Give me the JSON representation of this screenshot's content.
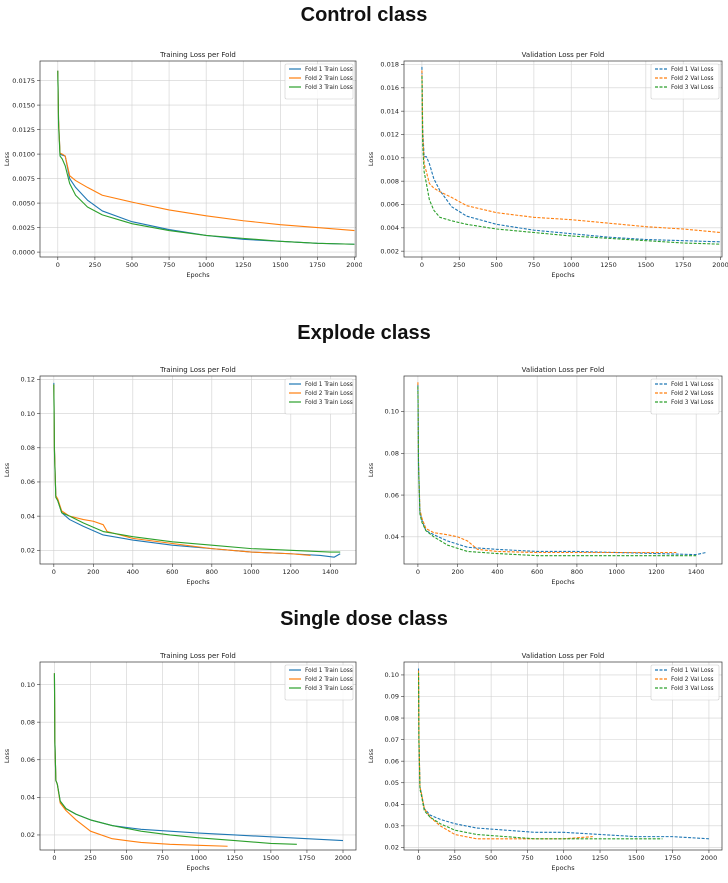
{
  "sections": [
    {
      "title": "Control class"
    },
    {
      "title": "Explode class"
    },
    {
      "title": "Single dose class"
    }
  ],
  "colors": {
    "fold1": "#1f77b4",
    "fold2": "#ff7f0e",
    "fold3": "#2ca02c",
    "grid": "#d0d0d0",
    "axis": "#333333"
  },
  "chart_data": [
    {
      "type": "line",
      "section": "Control class",
      "panel": "train",
      "title": "Training Loss per Fold",
      "xlabel": "Epochs",
      "ylabel": "Loss",
      "xlim": [
        -120,
        2010
      ],
      "ylim": [
        -0.0005,
        0.0195
      ],
      "xticks": [
        0,
        250,
        500,
        750,
        1000,
        1250,
        1500,
        1750,
        2000
      ],
      "yticks": [
        0.0,
        0.0025,
        0.005,
        0.0075,
        0.01,
        0.0125,
        0.015,
        0.0175
      ],
      "ytick_labels": [
        "0.0000",
        "0.0025",
        "0.0050",
        "0.0075",
        "0.0100",
        "0.0125",
        "0.0150",
        "0.0175"
      ],
      "legend": "top-right",
      "grid": true,
      "series": [
        {
          "name": "Fold 1 Train Loss",
          "dash": false,
          "x": [
            0,
            5,
            15,
            30,
            50,
            80,
            120,
            200,
            300,
            500,
            750,
            1000,
            1250,
            1500,
            1750,
            2000
          ],
          "y": [
            0.0185,
            0.0135,
            0.01,
            0.0099,
            0.0098,
            0.0075,
            0.0066,
            0.0053,
            0.0042,
            0.0031,
            0.0023,
            0.0017,
            0.0013,
            0.0011,
            0.0009,
            0.0008
          ]
        },
        {
          "name": "Fold 2 Train Loss",
          "dash": false,
          "x": [
            0,
            5,
            15,
            30,
            50,
            80,
            120,
            200,
            300,
            500,
            750,
            1000,
            1250,
            1500,
            1750,
            2000
          ],
          "y": [
            0.0185,
            0.0135,
            0.0101,
            0.01,
            0.0098,
            0.0078,
            0.0073,
            0.0066,
            0.0058,
            0.0051,
            0.0043,
            0.0037,
            0.0032,
            0.0028,
            0.0025,
            0.0022
          ]
        },
        {
          "name": "Fold 3 Train Loss",
          "dash": false,
          "x": [
            0,
            5,
            15,
            30,
            50,
            80,
            120,
            200,
            300,
            500,
            750,
            1000,
            1250,
            1500,
            1750,
            2000
          ],
          "y": [
            0.0185,
            0.013,
            0.0098,
            0.0095,
            0.0088,
            0.007,
            0.0058,
            0.0046,
            0.0038,
            0.0029,
            0.0022,
            0.0017,
            0.0014,
            0.0011,
            0.0009,
            0.0008
          ]
        }
      ]
    },
    {
      "type": "line",
      "section": "Control class",
      "panel": "val",
      "title": "Validation Loss per Fold",
      "xlabel": "Epochs",
      "ylabel": "Loss",
      "xlim": [
        -120,
        2010
      ],
      "ylim": [
        0.0015,
        0.0183
      ],
      "xticks": [
        0,
        250,
        500,
        750,
        1000,
        1250,
        1500,
        1750,
        2000
      ],
      "yticks": [
        0.002,
        0.004,
        0.006,
        0.008,
        0.01,
        0.012,
        0.014,
        0.016,
        0.018
      ],
      "ytick_labels": [
        "0.002",
        "0.004",
        "0.006",
        "0.008",
        "0.010",
        "0.012",
        "0.014",
        "0.016",
        "0.018"
      ],
      "legend": "top-right",
      "grid": true,
      "series": [
        {
          "name": "Fold 1 Val Loss",
          "dash": true,
          "x": [
            0,
            5,
            15,
            30,
            50,
            80,
            120,
            200,
            300,
            500,
            750,
            1000,
            1250,
            1500,
            1750,
            2000
          ],
          "y": [
            0.0178,
            0.0125,
            0.0101,
            0.0101,
            0.0095,
            0.0082,
            0.0072,
            0.0058,
            0.005,
            0.0043,
            0.0038,
            0.0035,
            0.0032,
            0.003,
            0.0029,
            0.0028
          ]
        },
        {
          "name": "Fold 2 Val Loss",
          "dash": true,
          "x": [
            0,
            5,
            15,
            30,
            50,
            80,
            120,
            200,
            300,
            500,
            750,
            1000,
            1250,
            1500,
            1750,
            2000
          ],
          "y": [
            0.0175,
            0.0122,
            0.0095,
            0.0088,
            0.0078,
            0.0074,
            0.0071,
            0.0066,
            0.0059,
            0.0053,
            0.0049,
            0.0047,
            0.0044,
            0.0041,
            0.0039,
            0.0036
          ]
        },
        {
          "name": "Fold 3 Val Loss",
          "dash": true,
          "x": [
            0,
            5,
            15,
            30,
            50,
            80,
            120,
            200,
            300,
            500,
            750,
            1000,
            1250,
            1500,
            1750,
            2000
          ],
          "y": [
            0.017,
            0.0112,
            0.0088,
            0.0078,
            0.0064,
            0.0055,
            0.0049,
            0.0046,
            0.0043,
            0.0039,
            0.0036,
            0.0033,
            0.0031,
            0.0029,
            0.0027,
            0.0026
          ]
        }
      ]
    },
    {
      "type": "line",
      "section": "Explode class",
      "panel": "train",
      "title": "Training Loss per Fold",
      "xlabel": "Epochs",
      "ylabel": "Loss",
      "xlim": [
        -70,
        1530
      ],
      "ylim": [
        0.012,
        0.122
      ],
      "xticks": [
        0,
        200,
        400,
        600,
        800,
        1000,
        1200,
        1400
      ],
      "yticks": [
        0.02,
        0.04,
        0.06,
        0.08,
        0.1,
        0.12
      ],
      "ytick_labels": [
        "0.02",
        "0.04",
        "0.06",
        "0.08",
        "0.10",
        "0.12"
      ],
      "legend": "top-right",
      "grid": true,
      "series": [
        {
          "name": "Fold 1 Train Loss",
          "dash": false,
          "x": [
            0,
            3,
            10,
            20,
            40,
            80,
            150,
            250,
            400,
            600,
            800,
            1000,
            1200,
            1350,
            1420,
            1450
          ],
          "y": [
            0.118,
            0.08,
            0.052,
            0.049,
            0.042,
            0.038,
            0.034,
            0.029,
            0.026,
            0.023,
            0.021,
            0.019,
            0.018,
            0.017,
            0.016,
            0.018
          ]
        },
        {
          "name": "Fold 2 Train Loss",
          "dash": false,
          "x": [
            0,
            3,
            10,
            20,
            40,
            80,
            150,
            200,
            250,
            270,
            400,
            600,
            800,
            1000,
            1200,
            1300
          ],
          "y": [
            0.117,
            0.08,
            0.052,
            0.05,
            0.043,
            0.04,
            0.038,
            0.037,
            0.035,
            0.031,
            0.027,
            0.024,
            0.021,
            0.019,
            0.018,
            0.017
          ]
        },
        {
          "name": "Fold 3 Train Loss",
          "dash": false,
          "x": [
            0,
            3,
            10,
            20,
            40,
            80,
            150,
            250,
            400,
            600,
            800,
            1000,
            1200,
            1300,
            1400,
            1450
          ],
          "y": [
            0.117,
            0.078,
            0.051,
            0.049,
            0.042,
            0.04,
            0.036,
            0.031,
            0.028,
            0.025,
            0.023,
            0.021,
            0.02,
            0.0195,
            0.019,
            0.019
          ]
        }
      ]
    },
    {
      "type": "line",
      "section": "Explode class",
      "panel": "val",
      "title": "Validation Loss per Fold",
      "xlabel": "Epochs",
      "ylabel": "Loss",
      "xlim": [
        -70,
        1530
      ],
      "ylim": [
        0.027,
        0.117
      ],
      "xticks": [
        0,
        200,
        400,
        600,
        800,
        1000,
        1200,
        1400
      ],
      "yticks": [
        0.04,
        0.06,
        0.08,
        0.1
      ],
      "ytick_labels": [
        "0.04",
        "0.06",
        "0.08",
        "0.10"
      ],
      "legend": "top-right",
      "grid": true,
      "series": [
        {
          "name": "Fold 1 Val Loss",
          "dash": true,
          "x": [
            0,
            3,
            10,
            20,
            40,
            80,
            150,
            250,
            400,
            600,
            800,
            1000,
            1200,
            1400,
            1450
          ],
          "y": [
            0.113,
            0.075,
            0.052,
            0.048,
            0.043,
            0.041,
            0.038,
            0.035,
            0.034,
            0.033,
            0.033,
            0.0325,
            0.032,
            0.0315,
            0.0325
          ]
        },
        {
          "name": "Fold 2 Val Loss",
          "dash": true,
          "x": [
            0,
            3,
            10,
            20,
            40,
            80,
            150,
            200,
            250,
            300,
            400,
            600,
            800,
            1000,
            1200,
            1300
          ],
          "y": [
            0.114,
            0.076,
            0.053,
            0.049,
            0.044,
            0.042,
            0.041,
            0.04,
            0.038,
            0.034,
            0.033,
            0.0325,
            0.0325,
            0.0325,
            0.0325,
            0.0325
          ]
        },
        {
          "name": "Fold 3 Val Loss",
          "dash": true,
          "x": [
            0,
            3,
            10,
            20,
            40,
            80,
            150,
            250,
            400,
            600,
            800,
            1000,
            1200,
            1400
          ],
          "y": [
            0.112,
            0.074,
            0.051,
            0.047,
            0.043,
            0.04,
            0.036,
            0.033,
            0.032,
            0.031,
            0.031,
            0.031,
            0.031,
            0.031
          ]
        }
      ]
    },
    {
      "type": "line",
      "section": "Single dose class",
      "panel": "train",
      "title": "Training Loss per Fold",
      "xlabel": "Epochs",
      "ylabel": "Loss",
      "xlim": [
        -100,
        2090
      ],
      "ylim": [
        0.012,
        0.112
      ],
      "xticks": [
        0,
        250,
        500,
        750,
        1000,
        1250,
        1500,
        1750,
        2000
      ],
      "yticks": [
        0.02,
        0.04,
        0.06,
        0.08,
        0.1
      ],
      "ytick_labels": [
        "0.02",
        "0.04",
        "0.06",
        "0.08",
        "0.10"
      ],
      "legend": "top-right",
      "grid": true,
      "series": [
        {
          "name": "Fold 1 Train Loss",
          "dash": false,
          "x": [
            0,
            3,
            10,
            20,
            40,
            80,
            150,
            250,
            400,
            600,
            800,
            1000,
            1250,
            1500,
            1750,
            2000
          ],
          "y": [
            0.106,
            0.07,
            0.049,
            0.047,
            0.038,
            0.034,
            0.031,
            0.028,
            0.025,
            0.023,
            0.022,
            0.021,
            0.02,
            0.019,
            0.018,
            0.017
          ]
        },
        {
          "name": "Fold 2 Train Loss",
          "dash": false,
          "x": [
            0,
            3,
            10,
            20,
            40,
            80,
            150,
            250,
            400,
            600,
            800,
            1000,
            1200
          ],
          "y": [
            0.106,
            0.07,
            0.049,
            0.047,
            0.037,
            0.033,
            0.028,
            0.022,
            0.018,
            0.016,
            0.015,
            0.0145,
            0.014
          ]
        },
        {
          "name": "Fold 3 Train Loss",
          "dash": false,
          "x": [
            0,
            3,
            10,
            20,
            40,
            80,
            150,
            250,
            400,
            600,
            800,
            1000,
            1250,
            1500,
            1680
          ],
          "y": [
            0.106,
            0.07,
            0.049,
            0.047,
            0.038,
            0.034,
            0.031,
            0.028,
            0.025,
            0.022,
            0.02,
            0.0185,
            0.017,
            0.0155,
            0.015
          ]
        }
      ]
    },
    {
      "type": "line",
      "section": "Single dose class",
      "panel": "val",
      "title": "Validation Loss per Fold",
      "xlabel": "Epochs",
      "ylabel": "Loss",
      "xlim": [
        -100,
        2090
      ],
      "ylim": [
        0.0188,
        0.106
      ],
      "xticks": [
        0,
        250,
        500,
        750,
        1000,
        1250,
        1500,
        1750,
        2000
      ],
      "yticks": [
        0.02,
        0.03,
        0.04,
        0.05,
        0.06,
        0.07,
        0.08,
        0.09,
        0.1
      ],
      "ytick_labels": [
        "0.02",
        "0.03",
        "0.04",
        "0.05",
        "0.06",
        "0.07",
        "0.08",
        "0.09",
        "0.10"
      ],
      "legend": "top-right",
      "grid": true,
      "series": [
        {
          "name": "Fold 1 Val Loss",
          "dash": true,
          "x": [
            0,
            3,
            10,
            20,
            40,
            80,
            150,
            250,
            400,
            600,
            800,
            1000,
            1250,
            1500,
            1750,
            2000
          ],
          "y": [
            0.103,
            0.07,
            0.048,
            0.045,
            0.038,
            0.035,
            0.033,
            0.031,
            0.029,
            0.028,
            0.027,
            0.027,
            0.026,
            0.025,
            0.025,
            0.024
          ]
        },
        {
          "name": "Fold 2 Val Loss",
          "dash": true,
          "x": [
            0,
            3,
            10,
            20,
            40,
            80,
            150,
            250,
            400,
            600,
            800,
            1000,
            1200
          ],
          "y": [
            0.102,
            0.07,
            0.048,
            0.045,
            0.038,
            0.034,
            0.03,
            0.026,
            0.024,
            0.024,
            0.024,
            0.024,
            0.025
          ]
        },
        {
          "name": "Fold 3 Val Loss",
          "dash": true,
          "x": [
            0,
            3,
            10,
            20,
            40,
            80,
            150,
            250,
            400,
            600,
            800,
            1000,
            1250,
            1500,
            1680
          ],
          "y": [
            0.101,
            0.068,
            0.047,
            0.044,
            0.037,
            0.034,
            0.031,
            0.028,
            0.026,
            0.025,
            0.024,
            0.024,
            0.024,
            0.024,
            0.024
          ]
        }
      ]
    }
  ]
}
